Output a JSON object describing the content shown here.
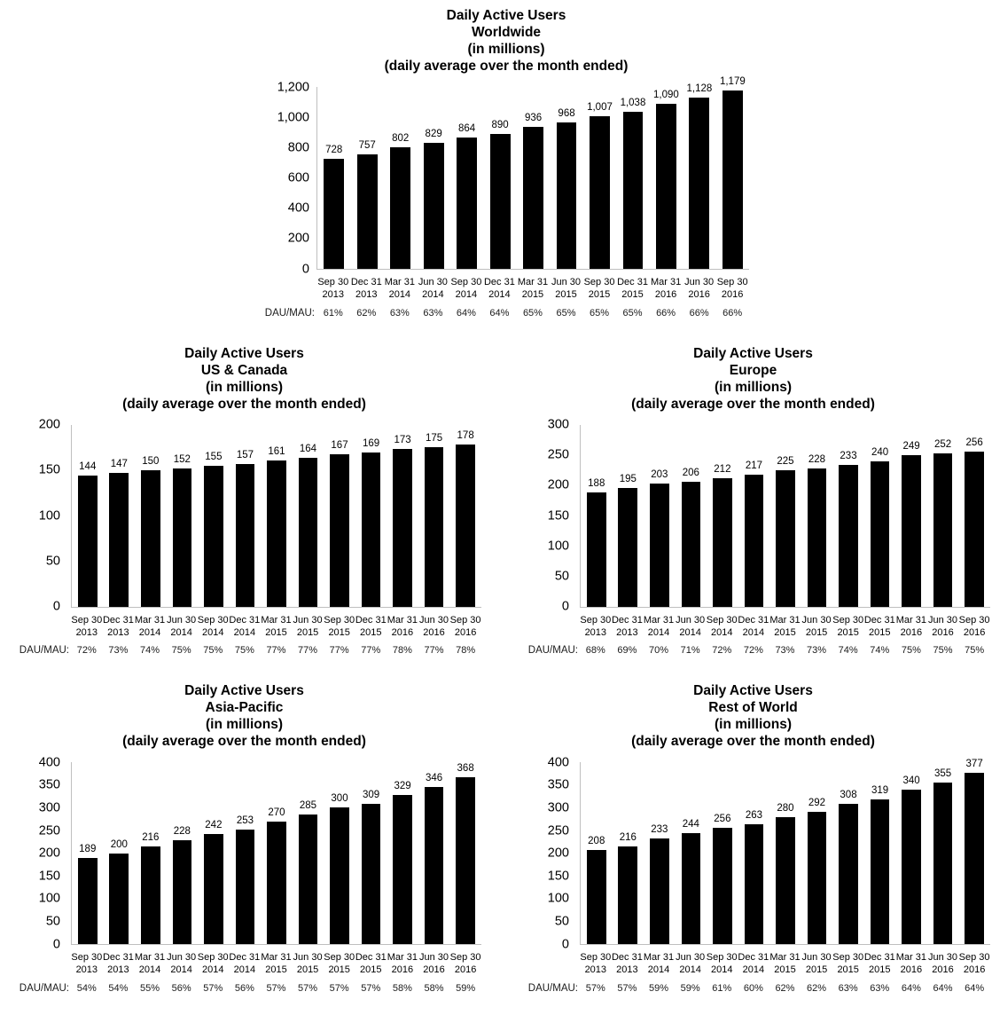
{
  "style": {
    "bar_color": "#000000",
    "axis_color": "#bfbfbf",
    "text_color": "#000000"
  },
  "chart_data": [
    {
      "type": "bar",
      "title": "Daily Active Users Worldwide (in millions) (daily average over the month ended)",
      "title_lines": [
        "Daily Active Users",
        "Worldwide",
        "(in millions)",
        "(daily average over the month ended)"
      ],
      "categories": [
        "Sep 30\n2013",
        "Dec 31\n2013",
        "Mar 31\n2014",
        "Jun 30\n2014",
        "Sep 30\n2014",
        "Dec 31\n2014",
        "Mar 31\n2015",
        "Jun 30\n2015",
        "Sep 30\n2015",
        "Dec 31\n2015",
        "Mar 31\n2016",
        "Jun 30\n2016",
        "Sep 30\n2016"
      ],
      "values": [
        728,
        757,
        802,
        829,
        864,
        890,
        936,
        968,
        1007,
        1038,
        1090,
        1128,
        1179
      ],
      "value_labels": [
        "728",
        "757",
        "802",
        "829",
        "864",
        "890",
        "936",
        "968",
        "1,007",
        "1,038",
        "1,090",
        "1,128",
        "1,179"
      ],
      "ylim": [
        0,
        1200
      ],
      "yticks": [
        0,
        200,
        400,
        600,
        800,
        1000,
        1200
      ],
      "ytick_labels": [
        "0",
        "200",
        "400",
        "600",
        "800",
        "1,000",
        "1,200"
      ],
      "xlabel": "",
      "ylabel": "",
      "grid": false,
      "row_label": "DAU/MAU:",
      "dau_mau": [
        "61%",
        "62%",
        "63%",
        "63%",
        "64%",
        "64%",
        "65%",
        "65%",
        "65%",
        "65%",
        "66%",
        "66%",
        "66%"
      ]
    },
    {
      "type": "bar",
      "title": "Daily Active Users US & Canada (in millions) (daily average over the month ended)",
      "title_lines": [
        "Daily Active Users",
        "US & Canada",
        "(in millions)",
        "(daily average over the month ended)"
      ],
      "categories": [
        "Sep 30\n2013",
        "Dec 31\n2013",
        "Mar 31\n2014",
        "Jun 30\n2014",
        "Sep 30\n2014",
        "Dec 31\n2014",
        "Mar 31\n2015",
        "Jun 30\n2015",
        "Sep 30\n2015",
        "Dec 31\n2015",
        "Mar 31\n2016",
        "Jun 30\n2016",
        "Sep 30\n2016"
      ],
      "values": [
        144,
        147,
        150,
        152,
        155,
        157,
        161,
        164,
        167,
        169,
        173,
        175,
        178
      ],
      "value_labels": [
        "144",
        "147",
        "150",
        "152",
        "155",
        "157",
        "161",
        "164",
        "167",
        "169",
        "173",
        "175",
        "178"
      ],
      "ylim": [
        0,
        200
      ],
      "yticks": [
        0,
        50,
        100,
        150,
        200
      ],
      "ytick_labels": [
        "0",
        "50",
        "100",
        "150",
        "200"
      ],
      "xlabel": "",
      "ylabel": "",
      "grid": false,
      "row_label": "DAU/MAU:",
      "dau_mau": [
        "72%",
        "73%",
        "74%",
        "75%",
        "75%",
        "75%",
        "77%",
        "77%",
        "77%",
        "77%",
        "78%",
        "77%",
        "78%"
      ]
    },
    {
      "type": "bar",
      "title": "Daily Active Users Europe (in millions) (daily average over the month ended)",
      "title_lines": [
        "Daily Active Users",
        "Europe",
        "(in millions)",
        "(daily average over the month ended)"
      ],
      "categories": [
        "Sep 30\n2013",
        "Dec 31\n2013",
        "Mar 31\n2014",
        "Jun 30\n2014",
        "Sep 30\n2014",
        "Dec 31\n2014",
        "Mar 31\n2015",
        "Jun 30\n2015",
        "Sep 30\n2015",
        "Dec 31\n2015",
        "Mar 31\n2016",
        "Jun 30\n2016",
        "Sep 30\n2016"
      ],
      "values": [
        188,
        195,
        203,
        206,
        212,
        217,
        225,
        228,
        233,
        240,
        249,
        252,
        256
      ],
      "value_labels": [
        "188",
        "195",
        "203",
        "206",
        "212",
        "217",
        "225",
        "228",
        "233",
        "240",
        "249",
        "252",
        "256"
      ],
      "ylim": [
        0,
        300
      ],
      "yticks": [
        0,
        50,
        100,
        150,
        200,
        250,
        300
      ],
      "ytick_labels": [
        "0",
        "50",
        "100",
        "150",
        "200",
        "250",
        "300"
      ],
      "xlabel": "",
      "ylabel": "",
      "grid": false,
      "row_label": "DAU/MAU:",
      "dau_mau": [
        "68%",
        "69%",
        "70%",
        "71%",
        "72%",
        "72%",
        "73%",
        "73%",
        "74%",
        "74%",
        "75%",
        "75%",
        "75%"
      ]
    },
    {
      "type": "bar",
      "title": "Daily Active Users Asia-Pacific (in millions) (daily average over the month ended)",
      "title_lines": [
        "Daily Active Users",
        "Asia-Pacific",
        "(in millions)",
        "(daily average over the month ended)"
      ],
      "categories": [
        "Sep 30\n2013",
        "Dec 31\n2013",
        "Mar 31\n2014",
        "Jun 30\n2014",
        "Sep 30\n2014",
        "Dec 31\n2014",
        "Mar 31\n2015",
        "Jun 30\n2015",
        "Sep 30\n2015",
        "Dec 31\n2015",
        "Mar 31\n2016",
        "Jun 30\n2016",
        "Sep 30\n2016"
      ],
      "values": [
        189,
        200,
        216,
        228,
        242,
        253,
        270,
        285,
        300,
        309,
        329,
        346,
        368
      ],
      "value_labels": [
        "189",
        "200",
        "216",
        "228",
        "242",
        "253",
        "270",
        "285",
        "300",
        "309",
        "329",
        "346",
        "368"
      ],
      "ylim": [
        0,
        400
      ],
      "yticks": [
        0,
        50,
        100,
        150,
        200,
        250,
        300,
        350,
        400
      ],
      "ytick_labels": [
        "0",
        "50",
        "100",
        "150",
        "200",
        "250",
        "300",
        "350",
        "400"
      ],
      "xlabel": "",
      "ylabel": "",
      "grid": false,
      "row_label": "DAU/MAU:",
      "dau_mau": [
        "54%",
        "54%",
        "55%",
        "56%",
        "57%",
        "56%",
        "57%",
        "57%",
        "57%",
        "57%",
        "58%",
        "58%",
        "59%"
      ]
    },
    {
      "type": "bar",
      "title": "Daily Active Users Rest of World (in millions) (daily average over the month ended)",
      "title_lines": [
        "Daily Active Users",
        "Rest of World",
        "(in millions)",
        "(daily average over the month ended)"
      ],
      "categories": [
        "Sep 30\n2013",
        "Dec 31\n2013",
        "Mar 31\n2014",
        "Jun 30\n2014",
        "Sep 30\n2014",
        "Dec 31\n2014",
        "Mar 31\n2015",
        "Jun 30\n2015",
        "Sep 30\n2015",
        "Dec 31\n2015",
        "Mar 31\n2016",
        "Jun 30\n2016",
        "Sep 30\n2016"
      ],
      "values": [
        208,
        216,
        233,
        244,
        256,
        263,
        280,
        292,
        308,
        319,
        340,
        355,
        377
      ],
      "value_labels": [
        "208",
        "216",
        "233",
        "244",
        "256",
        "263",
        "280",
        "292",
        "308",
        "319",
        "340",
        "355",
        "377"
      ],
      "ylim": [
        0,
        400
      ],
      "yticks": [
        0,
        50,
        100,
        150,
        200,
        250,
        300,
        350,
        400
      ],
      "ytick_labels": [
        "0",
        "50",
        "100",
        "150",
        "200",
        "250",
        "300",
        "350",
        "400"
      ],
      "xlabel": "",
      "ylabel": "",
      "grid": false,
      "row_label": "DAU/MAU:",
      "dau_mau": [
        "57%",
        "57%",
        "59%",
        "59%",
        "61%",
        "60%",
        "62%",
        "62%",
        "63%",
        "63%",
        "64%",
        "64%",
        "64%"
      ]
    }
  ]
}
